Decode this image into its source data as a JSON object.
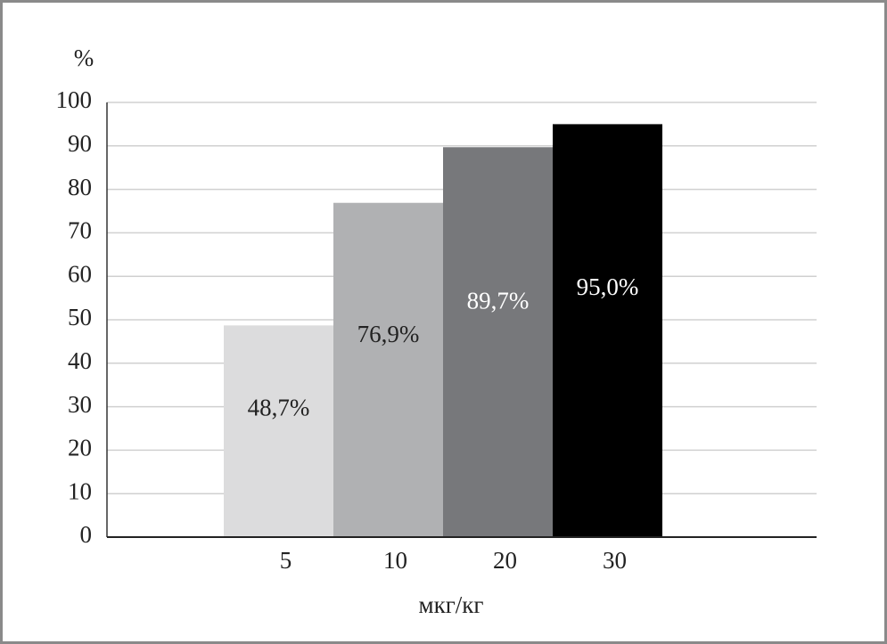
{
  "chart_data": {
    "type": "bar",
    "y_label": "%",
    "x_label": "мкг/кг",
    "categories": [
      "5",
      "10",
      "20",
      "30"
    ],
    "values": [
      48.7,
      76.9,
      89.7,
      95.0
    ],
    "value_labels": [
      "48,7%",
      "76,9%",
      "89,7%",
      "95,0%"
    ],
    "colors": [
      "#dcdcdd",
      "#b0b1b3",
      "#77787b",
      "#000000"
    ],
    "ylim": [
      0,
      100
    ],
    "yticks": [
      0,
      10,
      20,
      30,
      40,
      50,
      60,
      70,
      80,
      90,
      100
    ],
    "grid": true
  }
}
